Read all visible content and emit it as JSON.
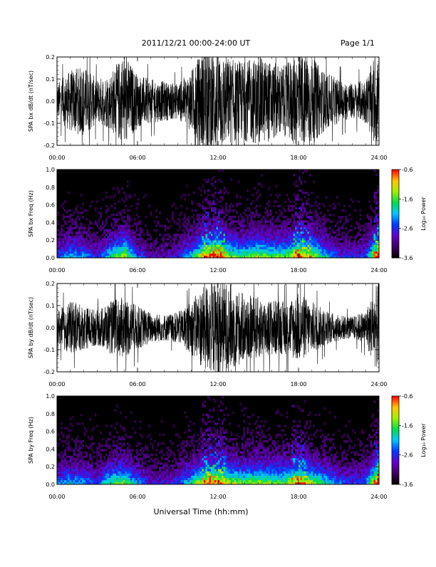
{
  "header": {
    "title": "2011/12/21  00:00-24:00 UT",
    "page": "Page 1/1"
  },
  "chart_data": [
    {
      "type": "line",
      "ylabel": "SPA bx dB/dt (nT/sec)",
      "ylim": [
        -0.2,
        0.2
      ],
      "yticks": [
        "-0.2",
        "-0.1",
        "0.0",
        "0.1",
        "0.2"
      ],
      "x_range_hours": [
        0,
        24
      ],
      "xticks": [
        "00:00",
        "06:00",
        "12:00",
        "18:00",
        "24:00"
      ],
      "envelope_hours": [
        0,
        1,
        2,
        3,
        4,
        5,
        6,
        7,
        8,
        9,
        10,
        11,
        12,
        13,
        14,
        15,
        16,
        17,
        18,
        19,
        20,
        21,
        22,
        23,
        24
      ],
      "envelope_amplitude": [
        0.08,
        0.14,
        0.16,
        0.1,
        0.13,
        0.22,
        0.12,
        0.1,
        0.09,
        0.08,
        0.14,
        0.25,
        0.24,
        0.19,
        0.18,
        0.2,
        0.18,
        0.16,
        0.23,
        0.2,
        0.13,
        0.1,
        0.08,
        0.1,
        0.25
      ],
      "grid": false
    },
    {
      "type": "heatmap",
      "ylabel": "SPA bx Freq (Hz)",
      "ylim": [
        0.0,
        1.0
      ],
      "yticks": [
        "0.0",
        "0.2",
        "0.4",
        "0.6",
        "0.8",
        "1.0"
      ],
      "x_range_hours": [
        0,
        24
      ],
      "xticks": [
        "00:00",
        "06:00",
        "12:00",
        "18:00",
        "24:00"
      ],
      "colorbar": {
        "label": "Log₁₀ Power",
        "ticks": [
          "-0.6",
          "-1.6",
          "-2.6",
          "-3.6"
        ],
        "range": [
          -3.6,
          -0.6
        ]
      },
      "activity_hours": [
        0,
        1,
        2,
        3,
        4,
        5,
        6,
        7,
        8,
        9,
        10,
        11,
        12,
        13,
        14,
        15,
        16,
        17,
        18,
        19,
        20,
        21,
        22,
        23,
        24
      ],
      "activity_level": [
        0.3,
        0.45,
        0.4,
        0.25,
        0.5,
        0.7,
        0.35,
        0.2,
        0.2,
        0.25,
        0.45,
        0.75,
        0.85,
        0.6,
        0.55,
        0.65,
        0.6,
        0.55,
        0.8,
        0.7,
        0.45,
        0.3,
        0.25,
        0.3,
        0.95
      ]
    },
    {
      "type": "line",
      "ylabel": "SPA by dB/dt (nT/sec)",
      "ylim": [
        -0.2,
        0.2
      ],
      "yticks": [
        "-0.2",
        "-0.1",
        "0.0",
        "0.1",
        "0.2"
      ],
      "x_range_hours": [
        0,
        24
      ],
      "xticks": [
        "00:00",
        "06:00",
        "12:00",
        "18:00",
        "24:00"
      ],
      "envelope_hours": [
        0,
        1,
        2,
        3,
        4,
        5,
        6,
        7,
        8,
        9,
        10,
        11,
        12,
        13,
        14,
        15,
        16,
        17,
        18,
        19,
        20,
        21,
        22,
        23,
        24
      ],
      "envelope_amplitude": [
        0.08,
        0.12,
        0.1,
        0.08,
        0.12,
        0.14,
        0.1,
        0.07,
        0.06,
        0.07,
        0.12,
        0.2,
        0.22,
        0.2,
        0.15,
        0.14,
        0.13,
        0.12,
        0.16,
        0.12,
        0.08,
        0.06,
        0.05,
        0.08,
        0.22
      ],
      "grid": false
    },
    {
      "type": "heatmap",
      "ylabel": "SPA by Freq (Hz)",
      "ylim": [
        0.0,
        1.0
      ],
      "yticks": [
        "0.0",
        "0.2",
        "0.4",
        "0.6",
        "0.8",
        "1.0"
      ],
      "x_range_hours": [
        0,
        24
      ],
      "xticks": [
        "00:00",
        "06:00",
        "12:00",
        "18:00",
        "24:00"
      ],
      "colorbar": {
        "label": "Log₁₀ Power",
        "ticks": [
          "-0.6",
          "-1.6",
          "-2.6",
          "-3.6"
        ],
        "range": [
          -3.6,
          -0.6
        ]
      },
      "activity_hours": [
        0,
        1,
        2,
        3,
        4,
        5,
        6,
        7,
        8,
        9,
        10,
        11,
        12,
        13,
        14,
        15,
        16,
        17,
        18,
        19,
        20,
        21,
        22,
        23,
        24
      ],
      "activity_level": [
        0.35,
        0.45,
        0.4,
        0.3,
        0.55,
        0.6,
        0.4,
        0.25,
        0.25,
        0.3,
        0.5,
        0.75,
        0.8,
        0.65,
        0.6,
        0.65,
        0.6,
        0.6,
        0.8,
        0.65,
        0.5,
        0.35,
        0.3,
        0.35,
        0.95
      ]
    }
  ],
  "footer": {
    "xlabel": "Universal Time (hh:mm)"
  }
}
